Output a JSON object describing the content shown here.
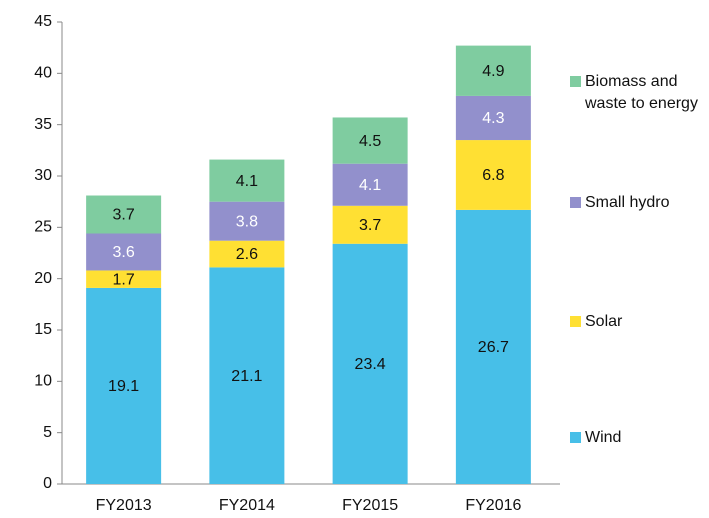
{
  "chart_data": {
    "type": "stacked_bar",
    "categories": [
      "FY2013",
      "FY2014",
      "FY2015",
      "FY2016"
    ],
    "series": [
      {
        "name": "Wind",
        "color": "#47bfe8",
        "label_color": "#111111",
        "values": [
          19.1,
          21.1,
          23.4,
          26.7
        ]
      },
      {
        "name": "Solar",
        "color": "#ffe033",
        "label_color": "#111111",
        "values": [
          1.7,
          2.6,
          3.7,
          6.8
        ]
      },
      {
        "name": "Small hydro",
        "color": "#9290cc",
        "label_color": "#ffffff",
        "values": [
          3.6,
          3.8,
          4.1,
          4.3
        ]
      },
      {
        "name": "Biomass and waste to energy",
        "color": "#7fcca0",
        "label_color": "#111111",
        "values": [
          3.7,
          4.1,
          4.5,
          4.9
        ]
      }
    ],
    "ylim": [
      0,
      45
    ],
    "yticks": [
      0,
      5,
      10,
      15,
      20,
      25,
      30,
      35,
      40,
      45
    ]
  }
}
